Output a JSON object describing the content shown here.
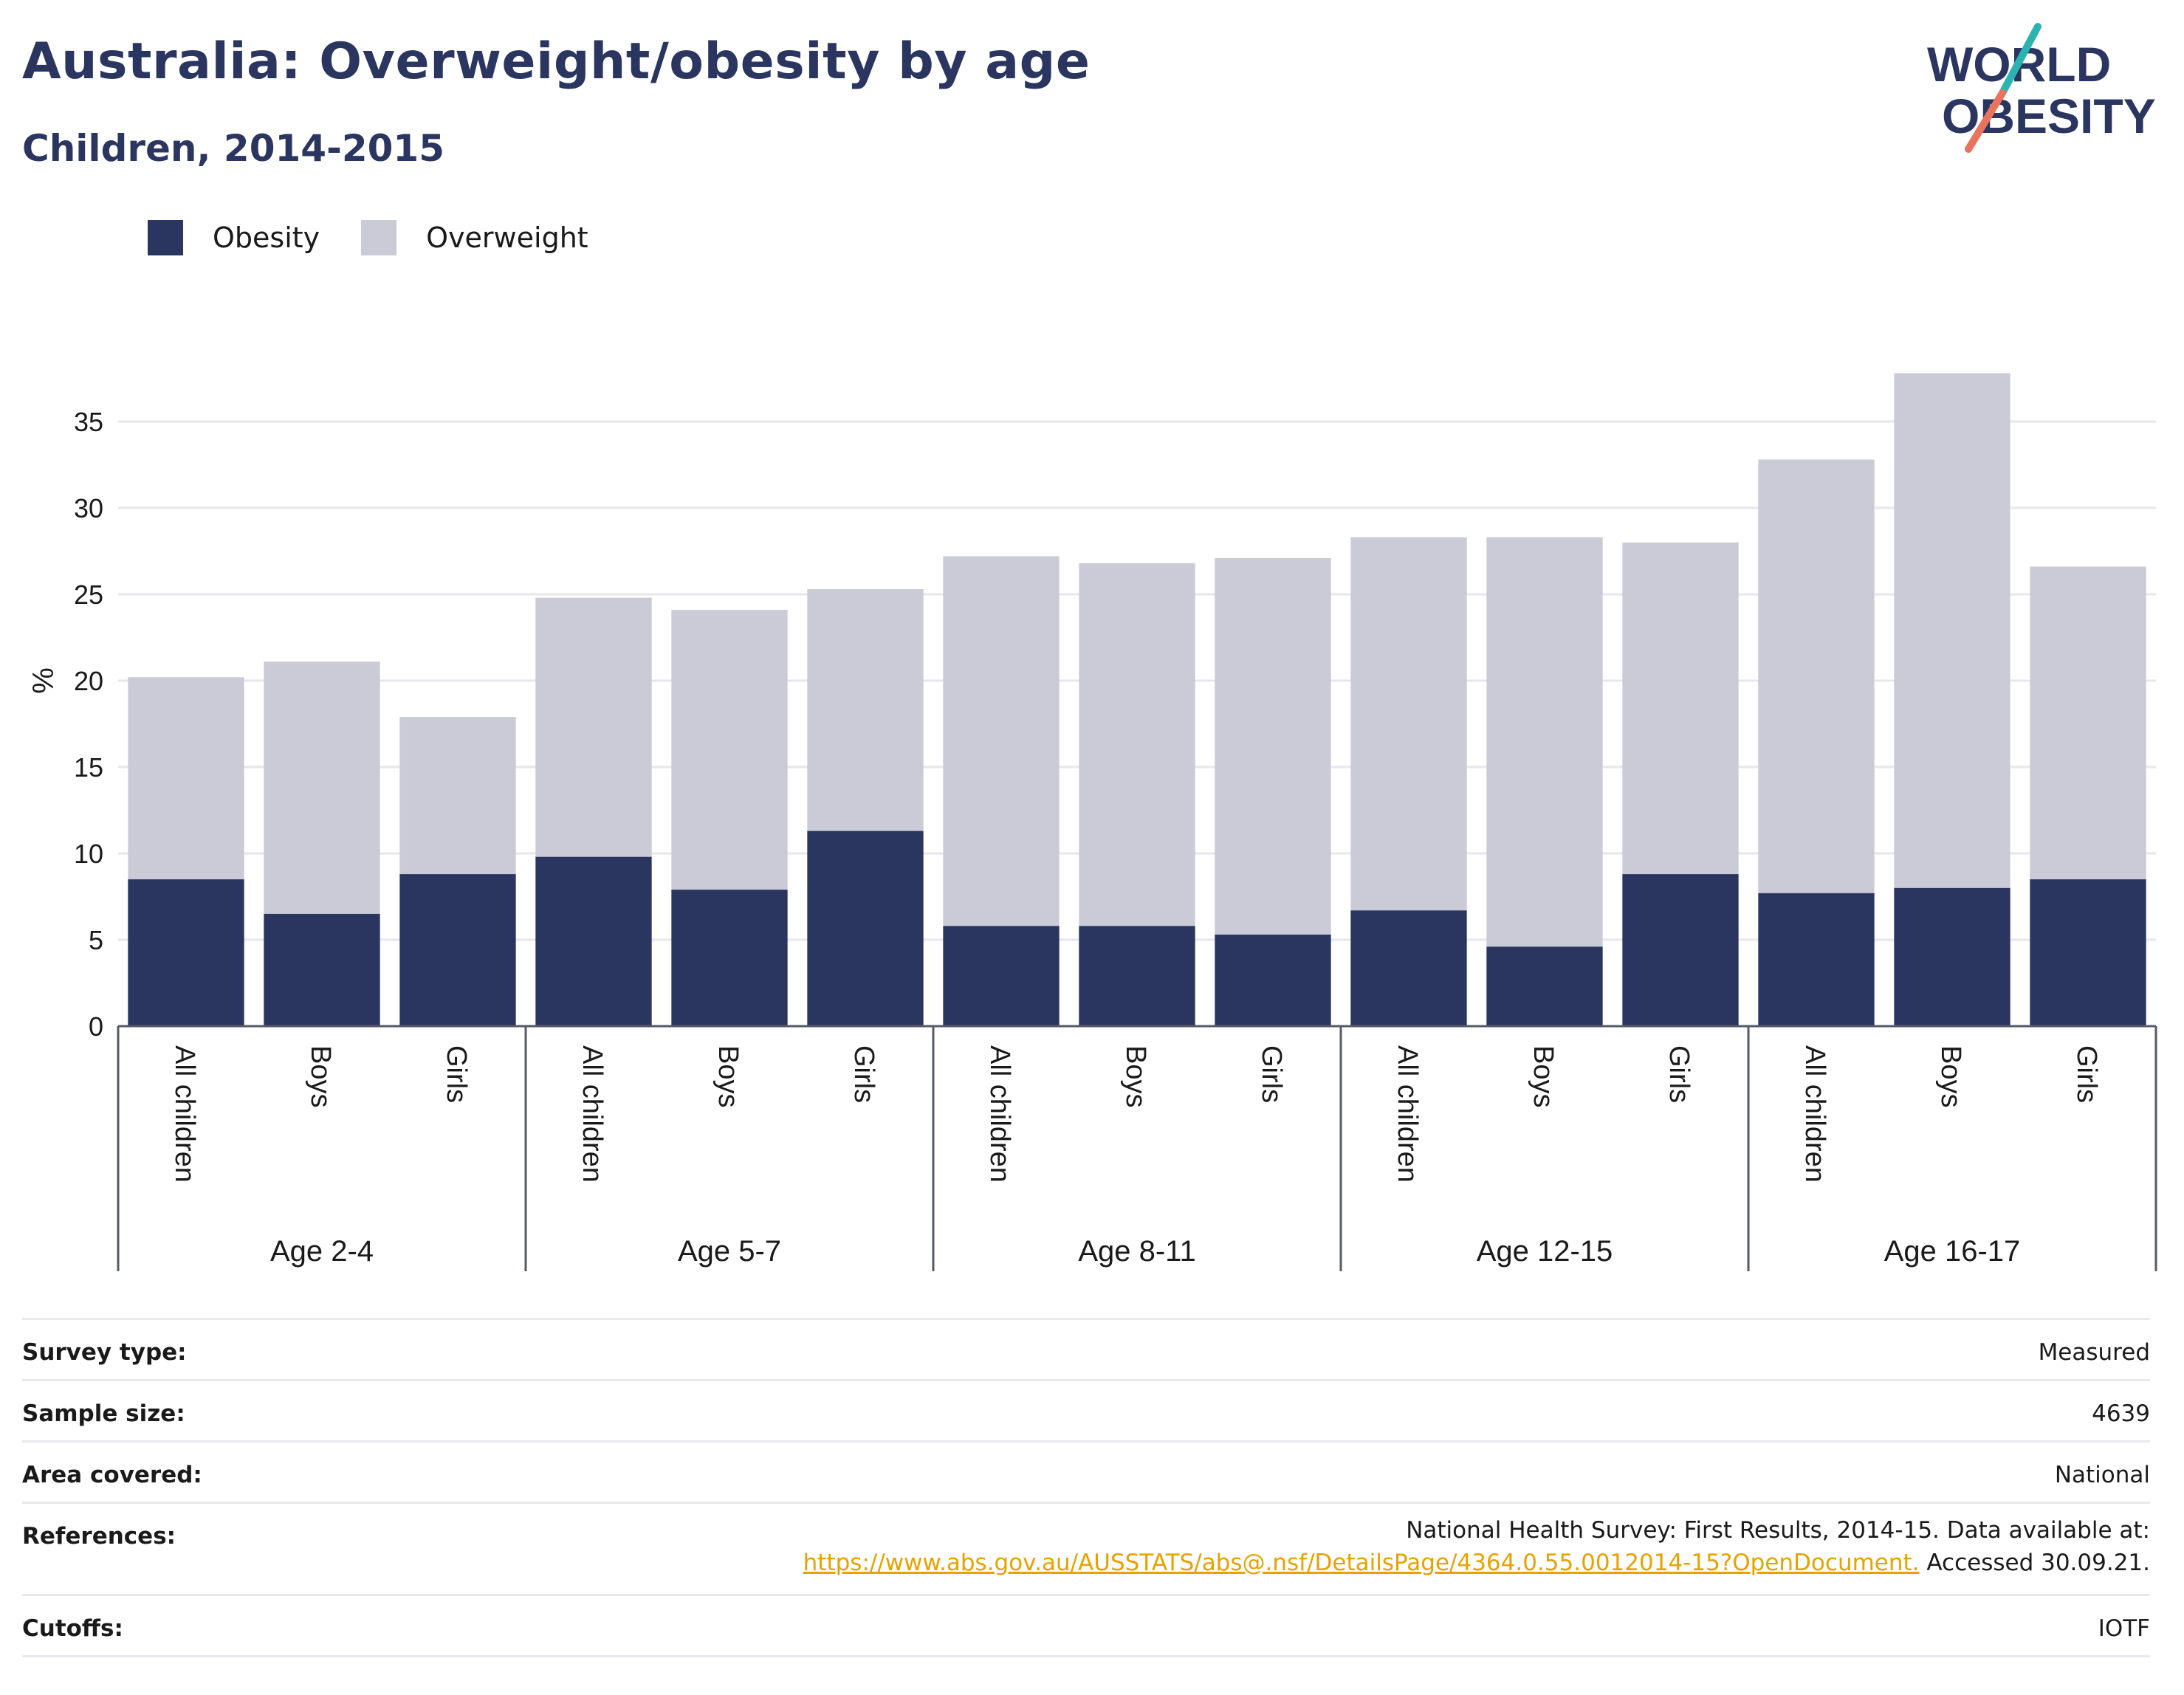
{
  "header": {
    "title": "Australia: Overweight/obesity by age",
    "subtitle": "Children, 2014-2015"
  },
  "logo": {
    "line1": "WORLD",
    "line2": "OBESITY",
    "colors": {
      "text": "#2a3560",
      "slash_top": "#2bb3b1",
      "slash_bottom": "#e9735d"
    }
  },
  "legend": [
    {
      "label": "Obesity",
      "color": "#2a3560"
    },
    {
      "label": "Overweight",
      "color": "#cacbd6"
    }
  ],
  "chart_data": {
    "type": "bar",
    "stacked": true,
    "ylabel": "%",
    "ylim": [
      0,
      40
    ],
    "yticks": [
      0,
      5,
      10,
      15,
      20,
      25,
      30,
      35
    ],
    "grid": true,
    "legend_position": "top-left",
    "groups": [
      {
        "label": "Age 2-4",
        "categories": [
          "All children",
          "Boys",
          "Girls"
        ]
      },
      {
        "label": "Age 5-7",
        "categories": [
          "All children",
          "Boys",
          "Girls"
        ]
      },
      {
        "label": "Age 8-11",
        "categories": [
          "All children",
          "Boys",
          "Girls"
        ]
      },
      {
        "label": "Age 12-15",
        "categories": [
          "All children",
          "Boys",
          "Girls"
        ]
      },
      {
        "label": "Age 16-17",
        "categories": [
          "All children",
          "Boys",
          "Girls"
        ]
      }
    ],
    "series": [
      {
        "name": "Obesity",
        "color": "#2a3560",
        "values": [
          8.5,
          6.5,
          8.8,
          9.8,
          7.9,
          11.3,
          5.8,
          5.8,
          5.3,
          6.7,
          4.6,
          8.8,
          7.7,
          8.0,
          8.5
        ]
      },
      {
        "name": "Overweight",
        "color": "#cacbd6",
        "values": [
          11.7,
          14.6,
          9.1,
          15.0,
          16.2,
          14.0,
          21.4,
          21.0,
          21.8,
          21.6,
          23.7,
          19.2,
          25.1,
          29.8,
          18.1
        ]
      }
    ],
    "totals": [
      20.2,
      21.1,
      17.9,
      24.8,
      24.1,
      25.3,
      27.2,
      26.8,
      27.1,
      28.3,
      28.3,
      28.0,
      32.8,
      37.8,
      26.6
    ]
  },
  "info": {
    "rows": [
      {
        "key": "Survey type:",
        "value": "Measured"
      },
      {
        "key": "Sample size:",
        "value": "4639"
      },
      {
        "key": "Area covered:",
        "value": "National"
      },
      {
        "key": "References:",
        "value": "National Health Survey: First Results, 2014-15. Data available at:",
        "link": "https://www.abs.gov.au/AUSSTATS/abs@.nsf/DetailsPage/4364.0.55.0012014-15?OpenDocument.",
        "suffix": " Accessed 30.09.21."
      },
      {
        "key": "Cutoffs:",
        "value": "IOTF"
      }
    ]
  }
}
